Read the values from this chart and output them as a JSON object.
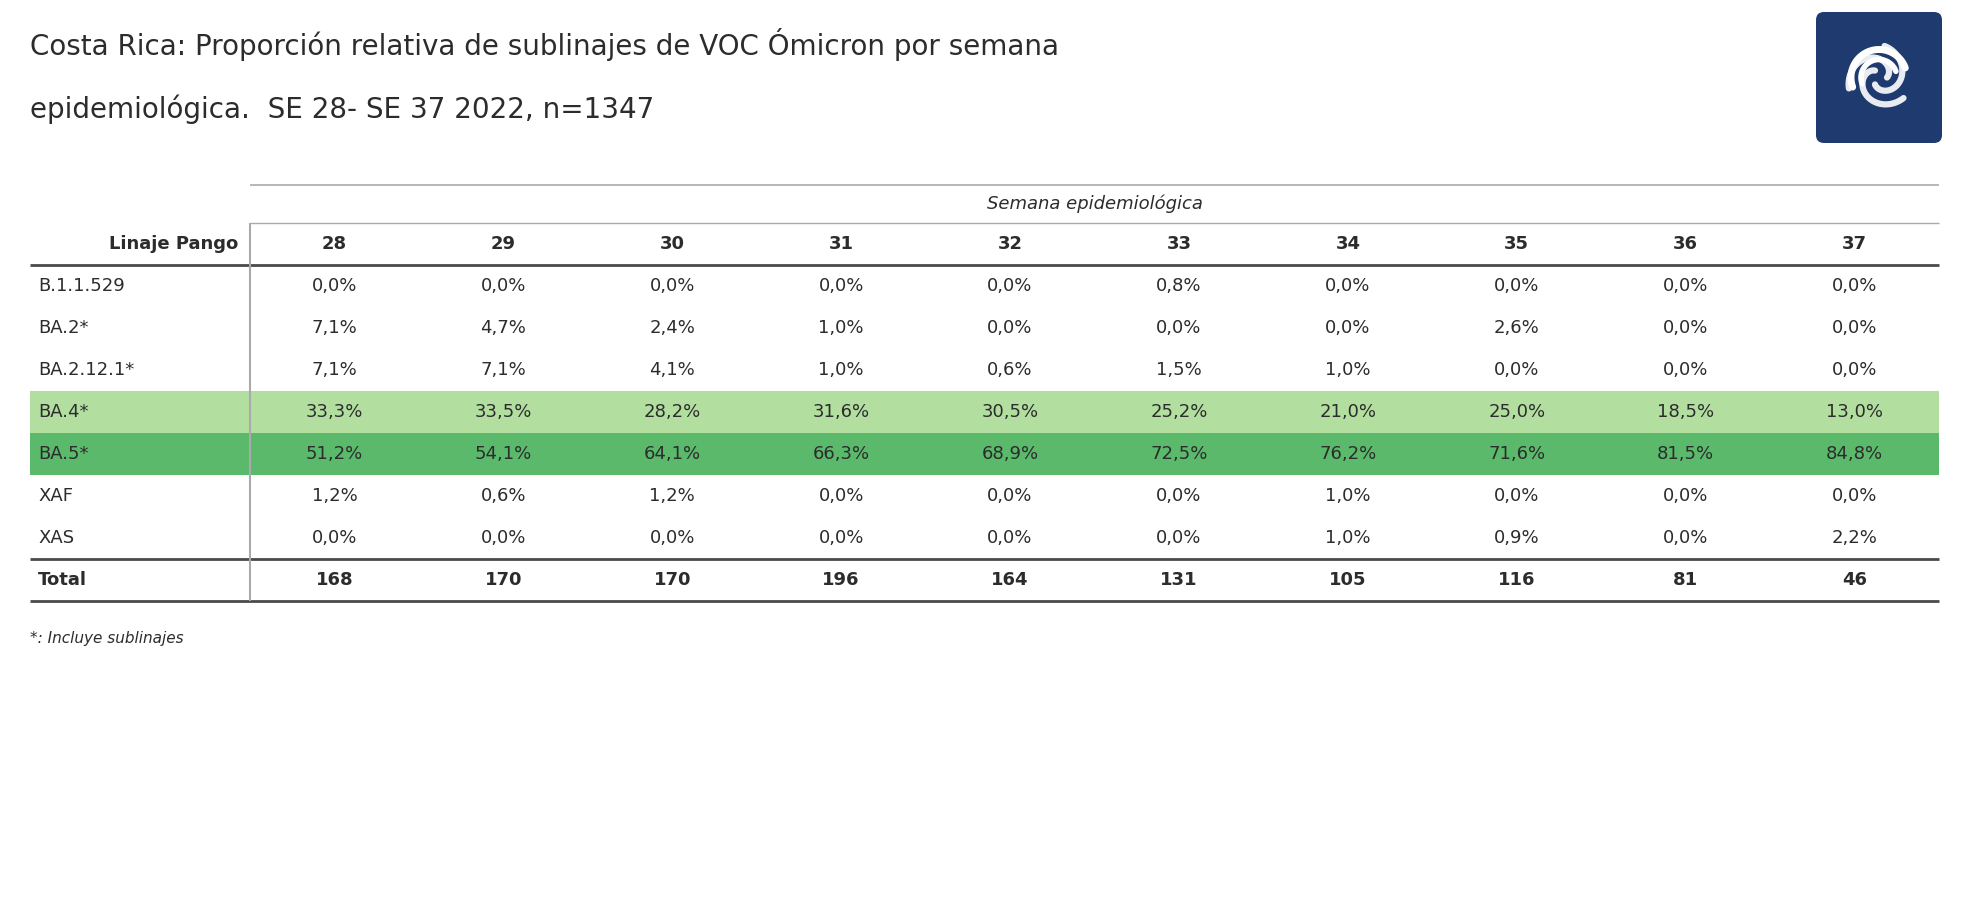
{
  "title_line1": "Costa Rica: Proporción relativa de sublinajes de VOC Ómicron por semana",
  "title_line2": "epidemiológica.  SE 28- SE 37 2022, n=1347",
  "col_header_group": "Semana epidemiológica",
  "col_header_first": "Linaje Pango",
  "weeks": [
    "28",
    "29",
    "30",
    "31",
    "32",
    "33",
    "34",
    "35",
    "36",
    "37"
  ],
  "row_labels": [
    "B.1.1.529",
    "BA.2*",
    "BA.2.12.1*",
    "BA.4*",
    "BA.5*",
    "XAF",
    "XAS",
    "Total"
  ],
  "data": [
    [
      "0,0%",
      "0,0%",
      "0,0%",
      "0,0%",
      "0,0%",
      "0,8%",
      "0,0%",
      "0,0%",
      "0,0%",
      "0,0%"
    ],
    [
      "7,1%",
      "4,7%",
      "2,4%",
      "1,0%",
      "0,0%",
      "0,0%",
      "0,0%",
      "2,6%",
      "0,0%",
      "0,0%"
    ],
    [
      "7,1%",
      "7,1%",
      "4,1%",
      "1,0%",
      "0,6%",
      "1,5%",
      "1,0%",
      "0,0%",
      "0,0%",
      "0,0%"
    ],
    [
      "33,3%",
      "33,5%",
      "28,2%",
      "31,6%",
      "30,5%",
      "25,2%",
      "21,0%",
      "25,0%",
      "18,5%",
      "13,0%"
    ],
    [
      "51,2%",
      "54,1%",
      "64,1%",
      "66,3%",
      "68,9%",
      "72,5%",
      "76,2%",
      "71,6%",
      "81,5%",
      "84,8%"
    ],
    [
      "1,2%",
      "0,6%",
      "1,2%",
      "0,0%",
      "0,0%",
      "0,0%",
      "1,0%",
      "0,0%",
      "0,0%",
      "0,0%"
    ],
    [
      "0,0%",
      "0,0%",
      "0,0%",
      "0,0%",
      "0,0%",
      "0,0%",
      "1,0%",
      "0,9%",
      "0,0%",
      "2,2%"
    ],
    [
      "168",
      "170",
      "170",
      "196",
      "164",
      "131",
      "105",
      "116",
      "81",
      "46"
    ]
  ],
  "row_bg_colors": [
    null,
    null,
    null,
    "#b2dfa0",
    "#5ab96b",
    null,
    null,
    null
  ],
  "background_color": "#ffffff",
  "text_color": "#2c2c2c",
  "line_color_heavy": "#4a4a4a",
  "line_color_light": "#aaaaaa",
  "footnote": "*: Incluye sublinajes",
  "logo_bg_color": "#1e3a6e",
  "fig_width": 19.69,
  "fig_height": 9.14,
  "dpi": 100
}
